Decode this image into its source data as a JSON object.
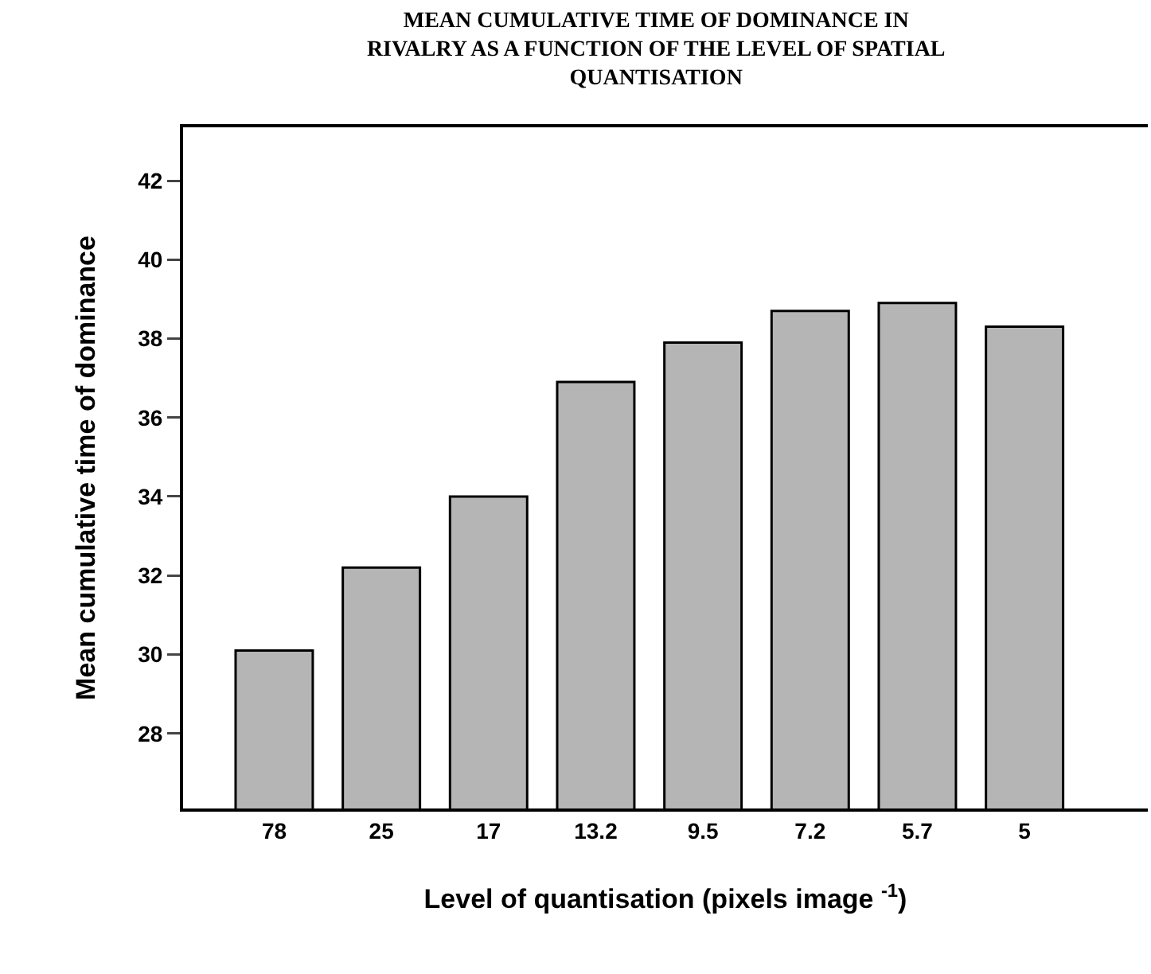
{
  "chart_data": {
    "type": "bar",
    "title": "MEAN CUMULATIVE TIME OF DOMINANCE IN\nRIVALRY AS A FUNCTION OF THE LEVEL OF SPATIAL\nQUANTISATION",
    "xlabel": "Level of quantisation (pixels image $^{-1}$)",
    "ylabel": "Mean cumulative time of dominance",
    "categories": [
      "78",
      "25",
      "17",
      "13.2",
      "9.5",
      "7.2",
      "5.7",
      "5"
    ],
    "values": [
      30.1,
      32.2,
      34.0,
      36.9,
      37.9,
      38.7,
      38.9,
      38.3
    ],
    "color": "#b5b5b5",
    "ylim": [
      26.1,
      43.35
    ],
    "yticks": [
      28,
      30,
      32,
      34,
      36,
      38,
      40,
      42
    ],
    "grid": false
  }
}
